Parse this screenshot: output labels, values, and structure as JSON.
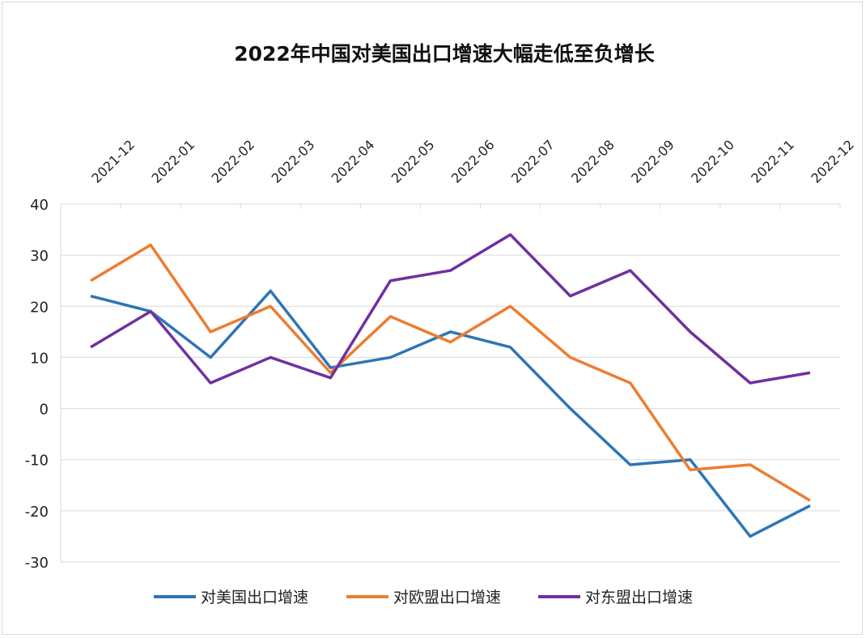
{
  "chart_data": {
    "type": "line",
    "title": "2022年中国对美国出口增速大幅走低至负增长",
    "xlabel": "",
    "ylabel": "",
    "categories": [
      "2021-12",
      "2022-01",
      "2022-02",
      "2022-03",
      "2022-04",
      "2022-05",
      "2022-06",
      "2022-07",
      "2022-08",
      "2022-09",
      "2022-10",
      "2022-11",
      "2022-12"
    ],
    "ylim": [
      -30,
      40
    ],
    "yticks": [
      40,
      30,
      20,
      10,
      0,
      -10,
      -20,
      -30
    ],
    "grid": true,
    "x_axis_position": "top",
    "legend_position": "bottom",
    "series": [
      {
        "name": "对美国出口增速",
        "color": "#2e75b6",
        "values": [
          22,
          19,
          10,
          23,
          8,
          10,
          15,
          12,
          0,
          -11,
          -10,
          -25,
          -19
        ]
      },
      {
        "name": "对欧盟出口增速",
        "color": "#ed7d31",
        "values": [
          25,
          32,
          15,
          20,
          7,
          18,
          13,
          20,
          10,
          5,
          -12,
          -11,
          -18
        ]
      },
      {
        "name": "对东盟出口增速",
        "color": "#7030a0",
        "values": [
          12,
          19,
          5,
          10,
          6,
          25,
          27,
          34,
          22,
          27,
          15,
          5,
          7
        ]
      }
    ]
  }
}
